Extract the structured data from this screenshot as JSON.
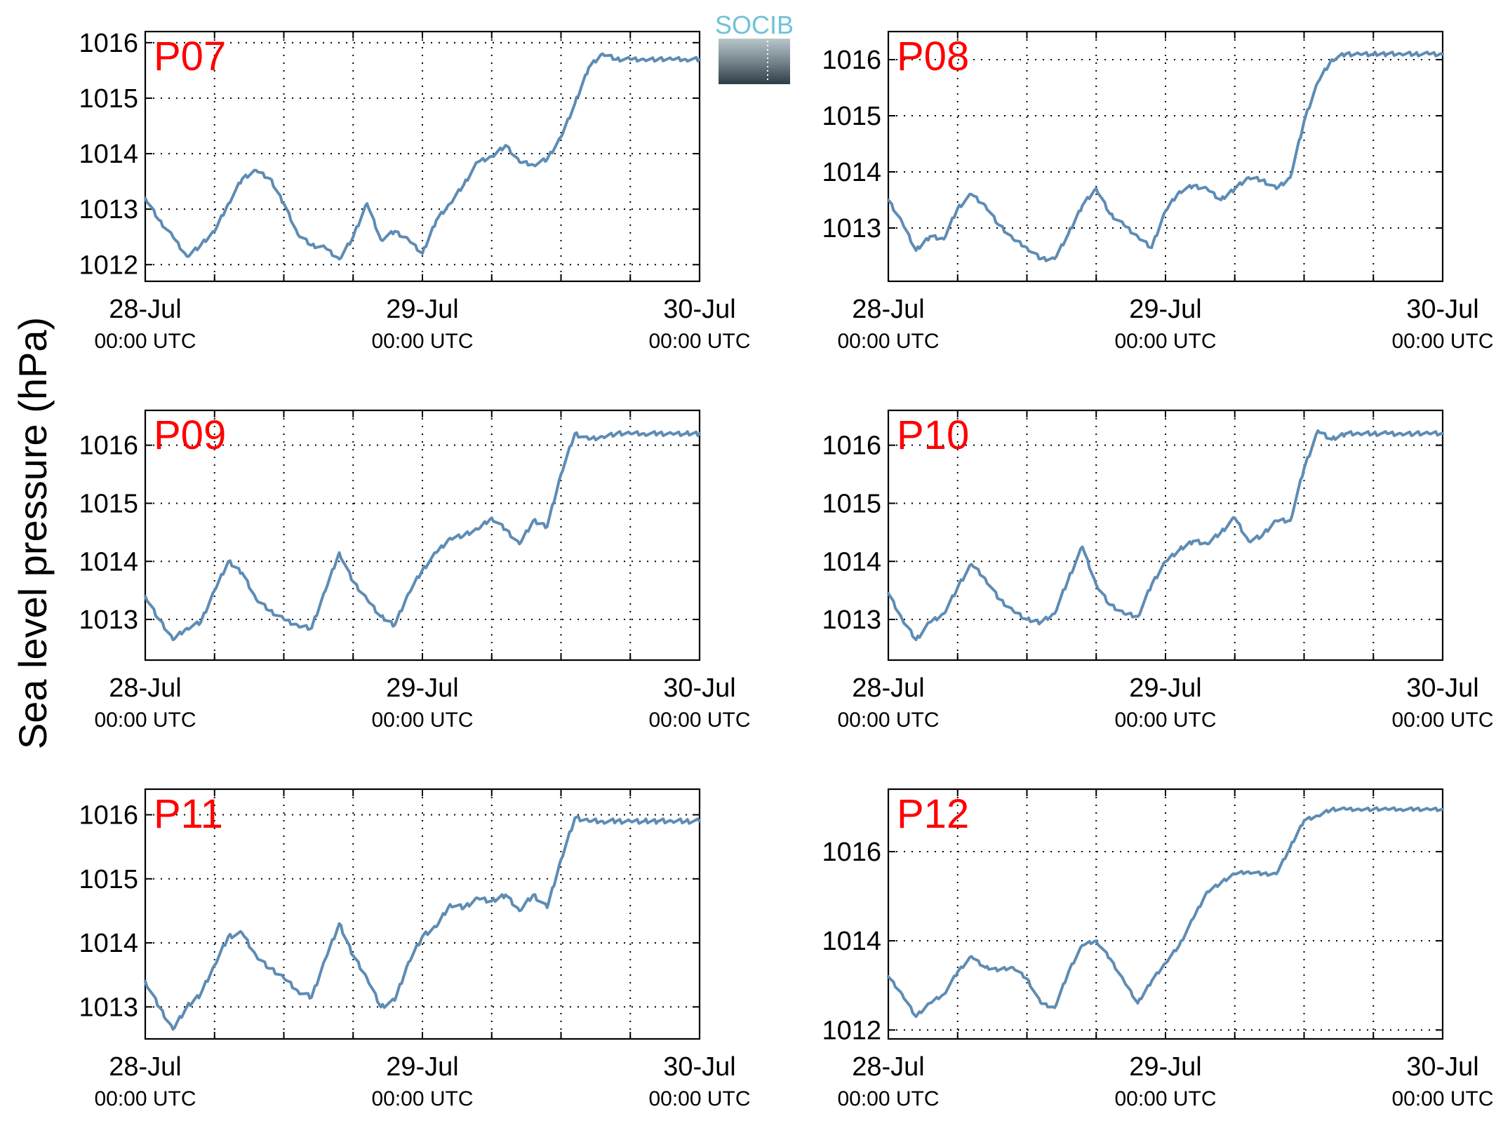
{
  "figure": {
    "ylabel": "Sea level pressure (hPa)",
    "logo_text": "SOCIB",
    "colors": {
      "line": "#5e8cb4",
      "panel_label": "#ff0000",
      "logo_accent": "#6fc2d6"
    }
  },
  "chart_data": [
    {
      "type": "line",
      "title": "P07",
      "xlim": [
        "2017-07-28 00:00 UTC",
        "2017-07-30 00:00 UTC"
      ],
      "xticks": [
        {
          "date": "28-Jul",
          "time": "00:00 UTC"
        },
        {
          "date": "29-Jul",
          "time": "00:00 UTC"
        },
        {
          "date": "30-Jul",
          "time": "00:00 UTC"
        }
      ],
      "ylim": [
        1011.7,
        1016.2
      ],
      "yticks": [
        1012,
        1013,
        1014,
        1015,
        1016
      ],
      "grid": true,
      "series": [
        {
          "x": [
            "2017-07-28 00:00",
            "2017-07-28 01:12",
            "2017-07-28 02:24",
            "2017-07-28 03:36",
            "2017-07-28 04:48",
            "2017-07-28 06:00",
            "2017-07-28 07:12",
            "2017-07-28 08:24",
            "2017-07-28 09:36",
            "2017-07-28 10:48",
            "2017-07-28 12:00",
            "2017-07-28 13:12",
            "2017-07-28 14:24",
            "2017-07-28 15:36",
            "2017-07-28 16:48",
            "2017-07-28 18:00",
            "2017-07-28 19:12",
            "2017-07-28 20:24",
            "2017-07-28 21:36",
            "2017-07-28 22:48",
            "2017-07-29 00:00",
            "2017-07-29 01:12",
            "2017-07-29 02:24",
            "2017-07-29 03:36",
            "2017-07-29 04:48",
            "2017-07-29 06:00",
            "2017-07-29 07:12",
            "2017-07-29 08:24",
            "2017-07-29 09:36",
            "2017-07-29 10:48",
            "2017-07-29 12:00",
            "2017-07-29 13:12",
            "2017-07-29 14:24",
            "2017-07-29 15:36",
            "2017-07-29 16:48",
            "2017-07-29 18:00",
            "2017-07-29 19:12",
            "2017-07-29 20:24",
            "2017-07-29 21:36",
            "2017-07-29 22:48",
            "2017-07-30 00:00"
          ],
          "values": [
            1013.2,
            1012.8,
            1012.5,
            1012.15,
            1012.35,
            1012.6,
            1013.1,
            1013.55,
            1013.7,
            1013.55,
            1013.1,
            1012.55,
            1012.35,
            1012.3,
            1012.1,
            1012.5,
            1013.1,
            1012.45,
            1012.6,
            1012.45,
            1012.2,
            1012.8,
            1013.1,
            1013.45,
            1013.85,
            1013.95,
            1014.15,
            1013.85,
            1013.8,
            1013.9,
            1014.3,
            1014.9,
            1015.55,
            1015.8,
            1015.7,
            1015.7,
            1015.7,
            1015.7,
            1015.7,
            1015.7,
            1015.7
          ]
        }
      ]
    },
    {
      "type": "line",
      "title": "P08",
      "xlim": [
        "2017-07-28 00:00 UTC",
        "2017-07-30 00:00 UTC"
      ],
      "xticks": [
        {
          "date": "28-Jul",
          "time": "00:00 UTC"
        },
        {
          "date": "29-Jul",
          "time": "00:00 UTC"
        },
        {
          "date": "30-Jul",
          "time": "00:00 UTC"
        }
      ],
      "ylim": [
        1012.05,
        1016.5
      ],
      "yticks": [
        1013,
        1014,
        1015,
        1016
      ],
      "grid": true,
      "series": [
        {
          "x": [
            "2017-07-28 00:00",
            "2017-07-28 01:12",
            "2017-07-28 02:24",
            "2017-07-28 03:36",
            "2017-07-28 04:48",
            "2017-07-28 06:00",
            "2017-07-28 07:12",
            "2017-07-28 08:24",
            "2017-07-28 09:36",
            "2017-07-28 10:48",
            "2017-07-28 12:00",
            "2017-07-28 13:12",
            "2017-07-28 14:24",
            "2017-07-28 15:36",
            "2017-07-28 16:48",
            "2017-07-28 18:00",
            "2017-07-28 19:12",
            "2017-07-28 20:24",
            "2017-07-28 21:36",
            "2017-07-28 22:48",
            "2017-07-29 00:00",
            "2017-07-29 01:12",
            "2017-07-29 02:24",
            "2017-07-29 03:36",
            "2017-07-29 04:48",
            "2017-07-29 06:00",
            "2017-07-29 07:12",
            "2017-07-29 08:24",
            "2017-07-29 09:36",
            "2017-07-29 10:48",
            "2017-07-29 12:00",
            "2017-07-29 13:12",
            "2017-07-29 14:24",
            "2017-07-29 15:36",
            "2017-07-29 16:48",
            "2017-07-29 18:00",
            "2017-07-29 19:12",
            "2017-07-29 20:24",
            "2017-07-29 21:36",
            "2017-07-29 22:48",
            "2017-07-30 00:00"
          ],
          "values": [
            1013.5,
            1013.1,
            1012.6,
            1012.85,
            1012.8,
            1013.35,
            1013.6,
            1013.4,
            1013.05,
            1012.8,
            1012.65,
            1012.45,
            1012.45,
            1012.9,
            1013.4,
            1013.7,
            1013.25,
            1013.05,
            1012.85,
            1012.65,
            1013.3,
            1013.65,
            1013.75,
            1013.7,
            1013.5,
            1013.7,
            1013.9,
            1013.85,
            1013.7,
            1013.9,
            1014.9,
            1015.6,
            1016.0,
            1016.1,
            1016.1,
            1016.1,
            1016.1,
            1016.1,
            1016.1,
            1016.1,
            1016.1
          ]
        }
      ]
    },
    {
      "type": "line",
      "title": "P09",
      "xlim": [
        "2017-07-28 00:00 UTC",
        "2017-07-30 00:00 UTC"
      ],
      "xticks": [
        {
          "date": "28-Jul",
          "time": "00:00 UTC"
        },
        {
          "date": "29-Jul",
          "time": "00:00 UTC"
        },
        {
          "date": "30-Jul",
          "time": "00:00 UTC"
        }
      ],
      "ylim": [
        1012.3,
        1016.6
      ],
      "yticks": [
        1013,
        1014,
        1015,
        1016
      ],
      "grid": true,
      "series": [
        {
          "x": [
            "2017-07-28 00:00",
            "2017-07-28 01:12",
            "2017-07-28 02:24",
            "2017-07-28 03:36",
            "2017-07-28 04:48",
            "2017-07-28 06:00",
            "2017-07-28 07:12",
            "2017-07-28 08:24",
            "2017-07-28 09:36",
            "2017-07-28 10:48",
            "2017-07-28 12:00",
            "2017-07-28 13:12",
            "2017-07-28 14:24",
            "2017-07-28 15:36",
            "2017-07-28 16:48",
            "2017-07-28 18:00",
            "2017-07-28 19:12",
            "2017-07-28 20:24",
            "2017-07-28 21:36",
            "2017-07-28 22:48",
            "2017-07-29 00:00",
            "2017-07-29 01:12",
            "2017-07-29 02:24",
            "2017-07-29 03:36",
            "2017-07-29 04:48",
            "2017-07-29 06:00",
            "2017-07-29 07:12",
            "2017-07-29 08:24",
            "2017-07-29 09:36",
            "2017-07-29 10:48",
            "2017-07-29 12:00",
            "2017-07-29 13:12",
            "2017-07-29 14:24",
            "2017-07-29 15:36",
            "2017-07-29 16:48",
            "2017-07-29 18:00",
            "2017-07-29 19:12",
            "2017-07-29 20:24",
            "2017-07-29 21:36",
            "2017-07-29 22:48",
            "2017-07-30 00:00"
          ],
          "values": [
            1013.4,
            1013.0,
            1012.65,
            1012.85,
            1012.95,
            1013.5,
            1014.0,
            1013.8,
            1013.35,
            1013.15,
            1013.0,
            1012.9,
            1012.85,
            1013.5,
            1014.15,
            1013.65,
            1013.35,
            1013.05,
            1012.9,
            1013.45,
            1013.85,
            1014.15,
            1014.4,
            1014.45,
            1014.55,
            1014.75,
            1014.55,
            1014.3,
            1014.7,
            1014.6,
            1015.5,
            1016.2,
            1016.1,
            1016.15,
            1016.2,
            1016.2,
            1016.2,
            1016.2,
            1016.2,
            1016.2,
            1016.2
          ]
        }
      ]
    },
    {
      "type": "line",
      "title": "P10",
      "xlim": [
        "2017-07-28 00:00 UTC",
        "2017-07-30 00:00 UTC"
      ],
      "xticks": [
        {
          "date": "28-Jul",
          "time": "00:00 UTC"
        },
        {
          "date": "29-Jul",
          "time": "00:00 UTC"
        },
        {
          "date": "30-Jul",
          "time": "00:00 UTC"
        }
      ],
      "ylim": [
        1012.3,
        1016.6
      ],
      "yticks": [
        1013,
        1014,
        1015,
        1016
      ],
      "grid": true,
      "series": [
        {
          "x": [
            "2017-07-28 00:00",
            "2017-07-28 01:12",
            "2017-07-28 02:24",
            "2017-07-28 03:36",
            "2017-07-28 04:48",
            "2017-07-28 06:00",
            "2017-07-28 07:12",
            "2017-07-28 08:24",
            "2017-07-28 09:36",
            "2017-07-28 10:48",
            "2017-07-28 12:00",
            "2017-07-28 13:12",
            "2017-07-28 14:24",
            "2017-07-28 15:36",
            "2017-07-28 16:48",
            "2017-07-28 18:00",
            "2017-07-28 19:12",
            "2017-07-28 20:24",
            "2017-07-28 21:36",
            "2017-07-28 22:48",
            "2017-07-29 00:00",
            "2017-07-29 01:12",
            "2017-07-29 02:24",
            "2017-07-29 03:36",
            "2017-07-29 04:48",
            "2017-07-29 06:00",
            "2017-07-29 07:12",
            "2017-07-29 08:24",
            "2017-07-29 09:36",
            "2017-07-29 10:48",
            "2017-07-29 12:00",
            "2017-07-29 13:12",
            "2017-07-29 14:24",
            "2017-07-29 15:36",
            "2017-07-29 16:48",
            "2017-07-29 18:00",
            "2017-07-29 19:12",
            "2017-07-29 20:24",
            "2017-07-29 21:36",
            "2017-07-29 22:48",
            "2017-07-30 00:00"
          ],
          "values": [
            1013.45,
            1013.0,
            1012.65,
            1012.95,
            1013.1,
            1013.55,
            1013.95,
            1013.7,
            1013.35,
            1013.15,
            1013.0,
            1012.95,
            1013.1,
            1013.7,
            1014.25,
            1013.6,
            1013.25,
            1013.1,
            1013.05,
            1013.6,
            1014.0,
            1014.2,
            1014.35,
            1014.3,
            1014.5,
            1014.75,
            1014.35,
            1014.45,
            1014.7,
            1014.7,
            1015.6,
            1016.25,
            1016.1,
            1016.2,
            1016.2,
            1016.2,
            1016.2,
            1016.2,
            1016.2,
            1016.2,
            1016.2
          ]
        }
      ]
    },
    {
      "type": "line",
      "title": "P11",
      "xlim": [
        "2017-07-28 00:00 UTC",
        "2017-07-30 00:00 UTC"
      ],
      "xticks": [
        {
          "date": "28-Jul",
          "time": "00:00 UTC"
        },
        {
          "date": "29-Jul",
          "time": "00:00 UTC"
        },
        {
          "date": "30-Jul",
          "time": "00:00 UTC"
        }
      ],
      "ylim": [
        1012.5,
        1016.4
      ],
      "yticks": [
        1013,
        1014,
        1015,
        1016
      ],
      "grid": true,
      "series": [
        {
          "x": [
            "2017-07-28 00:00",
            "2017-07-28 01:12",
            "2017-07-28 02:24",
            "2017-07-28 03:36",
            "2017-07-28 04:48",
            "2017-07-28 06:00",
            "2017-07-28 07:12",
            "2017-07-28 08:24",
            "2017-07-28 09:36",
            "2017-07-28 10:48",
            "2017-07-28 12:00",
            "2017-07-28 13:12",
            "2017-07-28 14:24",
            "2017-07-28 15:36",
            "2017-07-28 16:48",
            "2017-07-28 18:00",
            "2017-07-28 19:12",
            "2017-07-28 20:24",
            "2017-07-28 21:36",
            "2017-07-28 22:48",
            "2017-07-29 00:00",
            "2017-07-29 01:12",
            "2017-07-29 02:24",
            "2017-07-29 03:36",
            "2017-07-29 04:48",
            "2017-07-29 06:00",
            "2017-07-29 07:12",
            "2017-07-29 08:24",
            "2017-07-29 09:36",
            "2017-07-29 10:48",
            "2017-07-29 12:00",
            "2017-07-29 13:12",
            "2017-07-29 14:24",
            "2017-07-29 15:36",
            "2017-07-29 16:48",
            "2017-07-29 18:00",
            "2017-07-29 19:12",
            "2017-07-29 20:24",
            "2017-07-29 21:36",
            "2017-07-29 22:48",
            "2017-07-30 00:00"
          ],
          "values": [
            1013.4,
            1013.0,
            1012.65,
            1013.0,
            1013.2,
            1013.65,
            1014.1,
            1014.15,
            1013.8,
            1013.6,
            1013.45,
            1013.25,
            1013.15,
            1013.75,
            1014.3,
            1013.8,
            1013.45,
            1013.0,
            1013.1,
            1013.7,
            1014.1,
            1014.25,
            1014.6,
            1014.55,
            1014.7,
            1014.65,
            1014.75,
            1014.5,
            1014.75,
            1014.55,
            1015.3,
            1015.95,
            1015.9,
            1015.9,
            1015.9,
            1015.9,
            1015.9,
            1015.9,
            1015.9,
            1015.9,
            1015.9
          ]
        }
      ]
    },
    {
      "type": "line",
      "title": "P12",
      "xlim": [
        "2017-07-28 00:00 UTC",
        "2017-07-30 00:00 UTC"
      ],
      "xticks": [
        {
          "date": "28-Jul",
          "time": "00:00 UTC"
        },
        {
          "date": "29-Jul",
          "time": "00:00 UTC"
        },
        {
          "date": "30-Jul",
          "time": "00:00 UTC"
        }
      ],
      "ylim": [
        1011.8,
        1017.4
      ],
      "yticks": [
        1012,
        1014,
        1016
      ],
      "grid": true,
      "series": [
        {
          "x": [
            "2017-07-28 00:00",
            "2017-07-28 01:12",
            "2017-07-28 02:24",
            "2017-07-28 03:36",
            "2017-07-28 04:48",
            "2017-07-28 06:00",
            "2017-07-28 07:12",
            "2017-07-28 08:24",
            "2017-07-28 09:36",
            "2017-07-28 10:48",
            "2017-07-28 12:00",
            "2017-07-28 13:12",
            "2017-07-28 14:24",
            "2017-07-28 15:36",
            "2017-07-28 16:48",
            "2017-07-28 18:00",
            "2017-07-28 19:12",
            "2017-07-28 20:24",
            "2017-07-28 21:36",
            "2017-07-28 22:48",
            "2017-07-29 00:00",
            "2017-07-29 01:12",
            "2017-07-29 02:24",
            "2017-07-29 03:36",
            "2017-07-29 04:48",
            "2017-07-29 06:00",
            "2017-07-29 07:12",
            "2017-07-29 08:24",
            "2017-07-29 09:36",
            "2017-07-29 10:48",
            "2017-07-29 12:00",
            "2017-07-29 13:12",
            "2017-07-29 14:24",
            "2017-07-29 15:36",
            "2017-07-29 16:48",
            "2017-07-29 18:00",
            "2017-07-29 19:12",
            "2017-07-29 20:24",
            "2017-07-29 21:36",
            "2017-07-29 22:48",
            "2017-07-30 00:00"
          ],
          "values": [
            1013.2,
            1012.8,
            1012.3,
            1012.6,
            1012.8,
            1013.3,
            1013.65,
            1013.4,
            1013.35,
            1013.4,
            1013.15,
            1012.6,
            1012.5,
            1013.3,
            1013.9,
            1014.0,
            1013.6,
            1013.1,
            1012.6,
            1013.1,
            1013.5,
            1013.9,
            1014.5,
            1015.1,
            1015.3,
            1015.5,
            1015.55,
            1015.5,
            1015.5,
            1016.1,
            1016.7,
            1016.8,
            1016.95,
            1016.95,
            1016.95,
            1016.95,
            1016.95,
            1016.95,
            1016.95,
            1016.95,
            1016.95
          ]
        }
      ]
    }
  ]
}
